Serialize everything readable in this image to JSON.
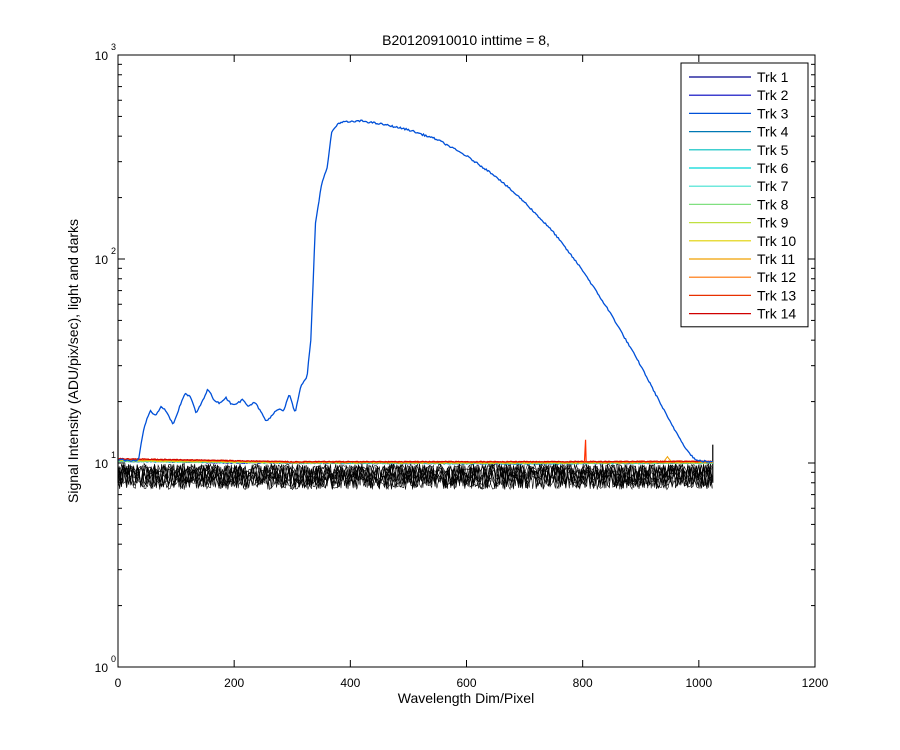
{
  "chart_data": {
    "type": "line",
    "title": "B20120910010 inttime = 8,",
    "xlabel": "Wavelength Dim/Pixel",
    "ylabel": "Signal Intensity (ADU/pix/sec), light and darks",
    "xlim": [
      0,
      1200
    ],
    "ylim": [
      1,
      1000
    ],
    "yscale": "log",
    "x_ticks": [
      "0",
      "200",
      "400",
      "600",
      "800",
      "1000",
      "1200"
    ],
    "y_ticks": [
      {
        "base": "10",
        "exp": "0"
      },
      {
        "base": "10",
        "exp": "1"
      },
      {
        "base": "10",
        "exp": "2"
      },
      {
        "base": "10",
        "exp": "3"
      }
    ],
    "grid": false,
    "legend_position": "top-right",
    "series": [
      {
        "name": "Trk 1",
        "color": "#00008F",
        "values": [
          [
            0,
            10.3
          ],
          [
            200,
            10.1
          ],
          [
            500,
            10.0
          ],
          [
            800,
            10.0
          ],
          [
            1024,
            10.1
          ]
        ]
      },
      {
        "name": "Trk 2",
        "color": "#0000BF",
        "values": [
          [
            0,
            10.2
          ],
          [
            200,
            10.0
          ],
          [
            500,
            9.95
          ],
          [
            800,
            9.95
          ],
          [
            1024,
            10.0
          ]
        ]
      },
      {
        "name": "Trk 3",
        "color": "#0050D8",
        "values": [
          [
            0,
            10.4
          ],
          [
            20,
            10.3
          ],
          [
            35,
            10.3
          ],
          [
            45,
            15
          ],
          [
            55,
            18
          ],
          [
            65,
            17
          ],
          [
            75,
            19
          ],
          [
            85,
            17.5
          ],
          [
            95,
            15.5
          ],
          [
            105,
            18.5
          ],
          [
            115,
            22
          ],
          [
            125,
            21
          ],
          [
            135,
            17.5
          ],
          [
            145,
            20
          ],
          [
            155,
            23
          ],
          [
            165,
            20.5
          ],
          [
            175,
            19.5
          ],
          [
            185,
            21
          ],
          [
            195,
            19.5
          ],
          [
            205,
            19.5
          ],
          [
            215,
            20.5
          ],
          [
            225,
            19
          ],
          [
            235,
            20
          ],
          [
            245,
            18
          ],
          [
            255,
            16
          ],
          [
            265,
            17
          ],
          [
            275,
            18.5
          ],
          [
            285,
            18
          ],
          [
            295,
            22
          ],
          [
            305,
            17.5
          ],
          [
            315,
            24
          ],
          [
            325,
            26
          ],
          [
            332,
            40
          ],
          [
            340,
            150
          ],
          [
            350,
            230
          ],
          [
            360,
            280
          ],
          [
            368,
            420
          ],
          [
            380,
            465
          ],
          [
            390,
            470
          ],
          [
            400,
            470
          ],
          [
            420,
            475
          ],
          [
            460,
            455
          ],
          [
            500,
            430
          ],
          [
            550,
            385
          ],
          [
            600,
            320
          ],
          [
            650,
            255
          ],
          [
            700,
            190
          ],
          [
            750,
            135
          ],
          [
            800,
            88
          ],
          [
            850,
            53
          ],
          [
            900,
            30
          ],
          [
            950,
            16
          ],
          [
            980,
            11.5
          ],
          [
            995,
            10.3
          ],
          [
            1024,
            10.1
          ]
        ]
      },
      {
        "name": "Trk 4",
        "color": "#0078B4",
        "values": [
          [
            0,
            10.2
          ],
          [
            300,
            10.0
          ],
          [
            700,
            9.9
          ],
          [
            1024,
            10.0
          ]
        ]
      },
      {
        "name": "Trk 5",
        "color": "#00BFBF",
        "values": [
          [
            0,
            10.3
          ],
          [
            300,
            10.05
          ],
          [
            700,
            10.0
          ],
          [
            1024,
            10.05
          ]
        ]
      },
      {
        "name": "Trk 6",
        "color": "#00D8D8",
        "values": [
          [
            0,
            10.2
          ],
          [
            300,
            10.0
          ],
          [
            700,
            9.95
          ],
          [
            1024,
            10.0
          ]
        ]
      },
      {
        "name": "Trk 7",
        "color": "#40E0D0",
        "values": [
          [
            0,
            10.3
          ],
          [
            300,
            10.05
          ],
          [
            700,
            10.0
          ],
          [
            1024,
            10.05
          ]
        ]
      },
      {
        "name": "Trk 8",
        "color": "#80E080",
        "values": [
          [
            0,
            10.2
          ],
          [
            300,
            10.0
          ],
          [
            700,
            10.0
          ],
          [
            1024,
            10.0
          ]
        ]
      },
      {
        "name": "Trk 9",
        "color": "#C0E040",
        "values": [
          [
            0,
            10.3
          ],
          [
            300,
            10.05
          ],
          [
            700,
            10.0
          ],
          [
            1024,
            10.05
          ]
        ]
      },
      {
        "name": "Trk 10",
        "color": "#E0D000",
        "values": [
          [
            0,
            10.3
          ],
          [
            300,
            10.05
          ],
          [
            700,
            10.0
          ],
          [
            1024,
            10.05
          ]
        ]
      },
      {
        "name": "Trk 11",
        "color": "#F0A000",
        "values": [
          [
            0,
            10.4
          ],
          [
            300,
            10.1
          ],
          [
            940,
            10.1
          ],
          [
            946,
            10.8
          ],
          [
            952,
            10.2
          ],
          [
            1024,
            10.1
          ]
        ]
      },
      {
        "name": "Trk 12",
        "color": "#FF7000",
        "values": [
          [
            0,
            10.4
          ],
          [
            300,
            10.1
          ],
          [
            700,
            10.1
          ],
          [
            1024,
            10.1
          ]
        ]
      },
      {
        "name": "Trk 13",
        "color": "#E83000",
        "values": [
          [
            0,
            10.5
          ],
          [
            300,
            10.15
          ],
          [
            700,
            10.15
          ],
          [
            1024,
            10.2
          ]
        ]
      },
      {
        "name": "Trk 14",
        "color": "#D00000",
        "values": [
          [
            0,
            10.5
          ],
          [
            300,
            10.15
          ],
          [
            700,
            10.15
          ],
          [
            1024,
            10.2
          ]
        ]
      }
    ],
    "darks": {
      "color": "#000000",
      "x_range": [
        0,
        1024
      ],
      "mean": 8.7,
      "min": 7.4,
      "max": 10.3
    },
    "spike": {
      "color": "#FF3000",
      "x": 805,
      "peak": 13.0,
      "base": 10.1
    }
  }
}
